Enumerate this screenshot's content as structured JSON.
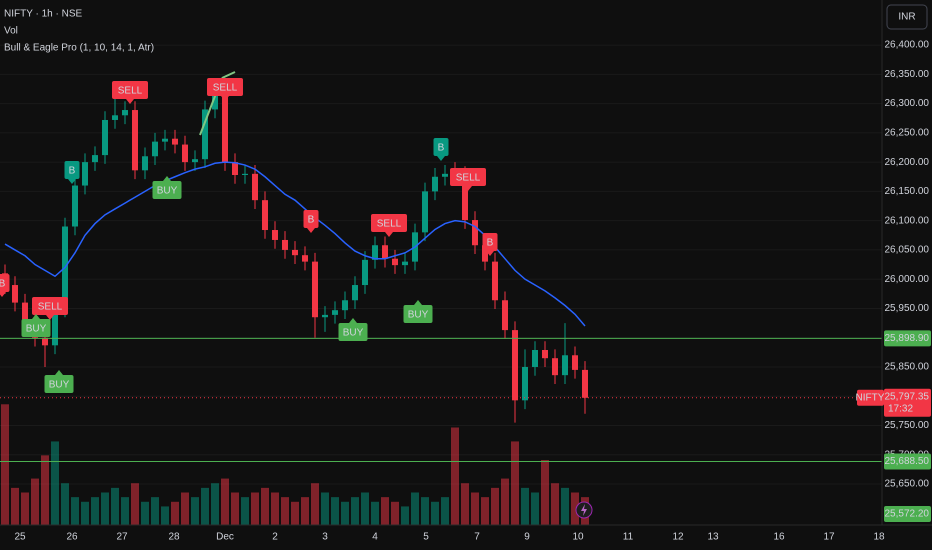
{
  "header": {
    "symbol": "NIFTY · 1h · NSE",
    "indicator_vol": "Vol",
    "indicator": "Bull & Eagle Pro (1, 10, 14, 1, Atr)",
    "currency_button": "INR"
  },
  "chart_data": {
    "type": "candlestick",
    "up_color": "#089981",
    "down_color": "#f23645",
    "ylim": [
      25580,
      26477
    ],
    "yticks": [
      {
        "value": 26400,
        "label": "26,400.00"
      },
      {
        "value": 26350,
        "label": "26,350.00"
      },
      {
        "value": 26300,
        "label": "26,300.00"
      },
      {
        "value": 26250,
        "label": "26,250.00"
      },
      {
        "value": 26200,
        "label": "26,200.00"
      },
      {
        "value": 26150,
        "label": "26,150.00"
      },
      {
        "value": 26100,
        "label": "26,100.00"
      },
      {
        "value": 26050,
        "label": "26,050.00"
      },
      {
        "value": 26000,
        "label": "26,000.00"
      },
      {
        "value": 25950,
        "label": "25,950.00"
      },
      {
        "value": 25900,
        "label": "25,900.00"
      },
      {
        "value": 25850,
        "label": "25,850.00"
      },
      {
        "value": 25800,
        "label": "25,800.00"
      },
      {
        "value": 25750,
        "label": "25,750.00"
      },
      {
        "value": 25700,
        "label": "25,700.00"
      },
      {
        "value": 25650,
        "label": "25,650.00"
      }
    ],
    "grid": true,
    "x_labels": [
      "25",
      "26",
      "27",
      "28",
      "Dec",
      "2",
      "3",
      "4",
      "5",
      "7",
      "9",
      "10",
      "11",
      "12",
      "13",
      "16",
      "17",
      "18"
    ],
    "open": [
      26010,
      25990,
      25960,
      25930,
      25900,
      25887,
      25950,
      26090,
      26160,
      26200,
      26212,
      26272,
      26280,
      26289,
      26186,
      26210,
      26235,
      26240,
      26230,
      26200,
      26205,
      26290,
      26315,
      26200,
      26178,
      26180,
      26135,
      26084,
      26067,
      26050,
      26041,
      26030,
      25935,
      25939,
      25947,
      25964,
      25990,
      26033,
      26058,
      26035,
      26024,
      26030,
      26080,
      26150,
      26175,
      26180,
      26178,
      26101,
      26058,
      26030,
      25964,
      25913,
      25793,
      25850,
      25879,
      25865,
      25836,
      25870,
      25845
    ],
    "high": [
      26025,
      26005,
      25975,
      25945,
      25915,
      25965,
      26105,
      26175,
      26215,
      26227,
      26287,
      26310,
      26304,
      26304,
      26225,
      26250,
      26255,
      26255,
      26245,
      26220,
      26305,
      26340,
      26330,
      26215,
      26195,
      26195,
      26150,
      26099,
      26082,
      26065,
      26056,
      26045,
      25954,
      25962,
      25979,
      26005,
      26048,
      26073,
      26073,
      26050,
      26045,
      26095,
      26165,
      26190,
      26195,
      26200,
      26193,
      26116,
      26073,
      26045,
      25979,
      25928,
      25880,
      25894,
      25894,
      25880,
      25925,
      25885,
      25860
    ],
    "low": [
      25975,
      25945,
      25915,
      25885,
      25850,
      25872,
      25935,
      26075,
      26145,
      26185,
      26197,
      26257,
      26265,
      26171,
      26171,
      26195,
      26220,
      26215,
      26185,
      26185,
      26190,
      26275,
      26185,
      26163,
      26163,
      26120,
      26069,
      26052,
      26035,
      26026,
      26015,
      25900,
      25910,
      25924,
      25932,
      25949,
      25975,
      26018,
      26020,
      26009,
      26009,
      26015,
      26065,
      26135,
      26160,
      26163,
      26086,
      26043,
      26015,
      25949,
      25898,
      25755,
      25778,
      25835,
      25850,
      25821,
      25821,
      25830,
      25770
    ],
    "close": [
      25990,
      25960,
      25930,
      25900,
      25887,
      25950,
      26090,
      26160,
      26200,
      26212,
      26272,
      26280,
      26289,
      26186,
      26210,
      26235,
      26240,
      26230,
      26200,
      26205,
      26290,
      26315,
      26200,
      26178,
      26180,
      26135,
      26084,
      26067,
      26050,
      26041,
      26030,
      25935,
      25939,
      25947,
      25964,
      25990,
      26033,
      26058,
      26035,
      26024,
      26030,
      26080,
      26150,
      26175,
      26180,
      26178,
      26101,
      26058,
      26030,
      25964,
      25913,
      25793,
      25850,
      25879,
      25865,
      25836,
      25870,
      25845,
      25797.35
    ],
    "volume": [
      130,
      40,
      35,
      50,
      75,
      90,
      45,
      30,
      25,
      30,
      35,
      40,
      30,
      45,
      25,
      30,
      20,
      25,
      35,
      30,
      40,
      45,
      50,
      35,
      30,
      35,
      40,
      35,
      30,
      25,
      30,
      45,
      35,
      30,
      25,
      30,
      35,
      25,
      30,
      25,
      20,
      35,
      30,
      25,
      30,
      105,
      45,
      35,
      30,
      40,
      50,
      90,
      40,
      35,
      70,
      45,
      40,
      35,
      30
    ],
    "volume_lim": [
      0,
      140
    ],
    "ma": {
      "color": "#2962ff",
      "values": [
        26060,
        26050,
        26040,
        26025,
        26015,
        26005,
        26020,
        26045,
        26075,
        26095,
        26110,
        26120,
        26130,
        26140,
        26150,
        26160,
        26168,
        26175,
        26182,
        26188,
        26192,
        26198,
        26200,
        26199,
        26195,
        26188,
        26175,
        26160,
        26145,
        26135,
        26120,
        26105,
        26092,
        26078,
        26062,
        26048,
        26040,
        26035,
        26035,
        26040,
        26045,
        26055,
        26070,
        26085,
        26095,
        26100,
        26098,
        26090,
        26075,
        26055,
        26035,
        26015,
        26000,
        25990,
        25980,
        25968,
        25955,
        25940,
        25920
      ]
    },
    "signals": [
      {
        "text": "B",
        "color": "#089981"
      },
      {
        "text": "SELL",
        "color": "#f23645"
      },
      {
        "text": "SELL",
        "color": "#f23645"
      },
      {
        "text": "BUY",
        "color": "#4caf50"
      },
      {
        "text": "B",
        "color": "#089981"
      },
      {
        "text": "SELL",
        "color": "#f23645"
      },
      {
        "text": "B",
        "color": "#f23645"
      },
      {
        "text": "SELL",
        "color": "#f23645"
      },
      {
        "text": "B",
        "color": "#f23645"
      },
      {
        "text": "B",
        "color": "#f23645"
      },
      {
        "text": "SELL",
        "color": "#f23645"
      },
      {
        "text": "BUY",
        "color": "#4caf50"
      },
      {
        "text": "BUY",
        "color": "#4caf50"
      },
      {
        "text": "BUY",
        "color": "#4caf50"
      },
      {
        "text": "BUY",
        "color": "#4caf50"
      }
    ],
    "hlines": [
      {
        "value": 25898.9,
        "label": "25,898.90",
        "color": "#4caf50"
      },
      {
        "value": 25688.5,
        "label": "25,688.50",
        "color": "#4caf50"
      }
    ],
    "extra_price_label": {
      "value": 25572.2,
      "label": "25,572.20",
      "color": "#4caf50"
    },
    "last_price": {
      "name": "NIFTY",
      "value": 25797.35,
      "label": "25,797.35",
      "countdown": "17:32",
      "color": "#f23645"
    }
  }
}
